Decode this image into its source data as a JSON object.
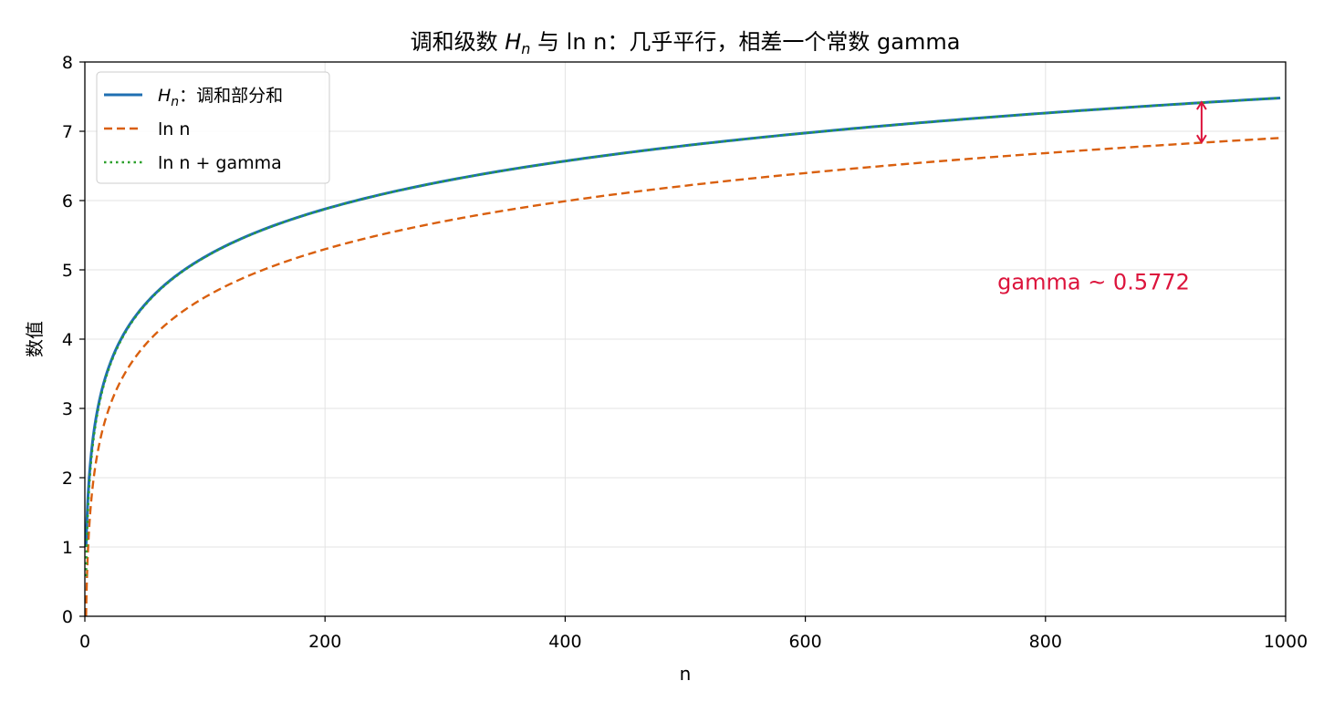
{
  "chart_data": {
    "type": "line",
    "title": "调和级数 Hn 与 ln n：几乎平行，相差一个常数 gamma",
    "title_parts": {
      "prefix": "调和级数 ",
      "symbol": "H",
      "subscript": "n",
      "suffix": " 与 ln n：几乎平行，相差一个常数 gamma"
    },
    "xlabel": "n",
    "ylabel": "数值",
    "xlim": [
      0,
      1000
    ],
    "ylim": [
      0,
      8
    ],
    "xticks": [
      0,
      200,
      400,
      600,
      800,
      1000
    ],
    "yticks": [
      0,
      1,
      2,
      3,
      4,
      5,
      6,
      7,
      8
    ],
    "grid": true,
    "legend_position": "top-left",
    "series": [
      {
        "name": "Hn：调和部分和",
        "label_parts": {
          "symbol": "H",
          "subscript": "n",
          "suffix": "：调和部分和"
        },
        "color": "#1f6fb2",
        "style": "solid",
        "x_range": [
          1,
          1000
        ],
        "x": [
          1,
          2,
          3,
          5,
          10,
          20,
          50,
          100,
          200,
          400,
          600,
          800,
          1000
        ],
        "values": [
          1.0,
          1.5,
          1.833,
          2.283,
          2.929,
          3.598,
          4.499,
          5.187,
          5.878,
          6.57,
          6.975,
          7.263,
          7.485
        ]
      },
      {
        "name": "ln n",
        "label_parts": {
          "symbol": "",
          "subscript": "",
          "suffix": "ln n"
        },
        "color": "#d95f0e",
        "style": "dashed",
        "x_range": [
          1,
          1000
        ],
        "x": [
          1,
          2,
          3,
          5,
          10,
          20,
          50,
          100,
          200,
          400,
          600,
          800,
          1000
        ],
        "values": [
          0.0,
          0.693,
          1.099,
          1.609,
          2.303,
          2.996,
          3.912,
          4.605,
          5.298,
          5.991,
          6.397,
          6.685,
          6.908
        ]
      },
      {
        "name": "ln n + gamma",
        "label_parts": {
          "symbol": "",
          "subscript": "",
          "suffix": "ln n + gamma"
        },
        "color": "#2ca02c",
        "style": "dotted",
        "x_range": [
          1,
          1000
        ],
        "x": [
          1,
          2,
          3,
          5,
          10,
          20,
          50,
          100,
          200,
          400,
          600,
          800,
          1000
        ],
        "values": [
          0.577,
          1.27,
          1.676,
          2.187,
          2.88,
          3.573,
          4.489,
          5.182,
          5.876,
          6.569,
          6.974,
          7.262,
          7.485
        ]
      }
    ],
    "annotations": [
      {
        "type": "double-arrow",
        "x": 930,
        "y_from": 6.84,
        "y_to": 7.42,
        "color": "#dc143c"
      },
      {
        "type": "text",
        "text": "gamma ~ 0.5772",
        "x": 760,
        "y": 4.72,
        "color": "#dc143c"
      }
    ]
  }
}
